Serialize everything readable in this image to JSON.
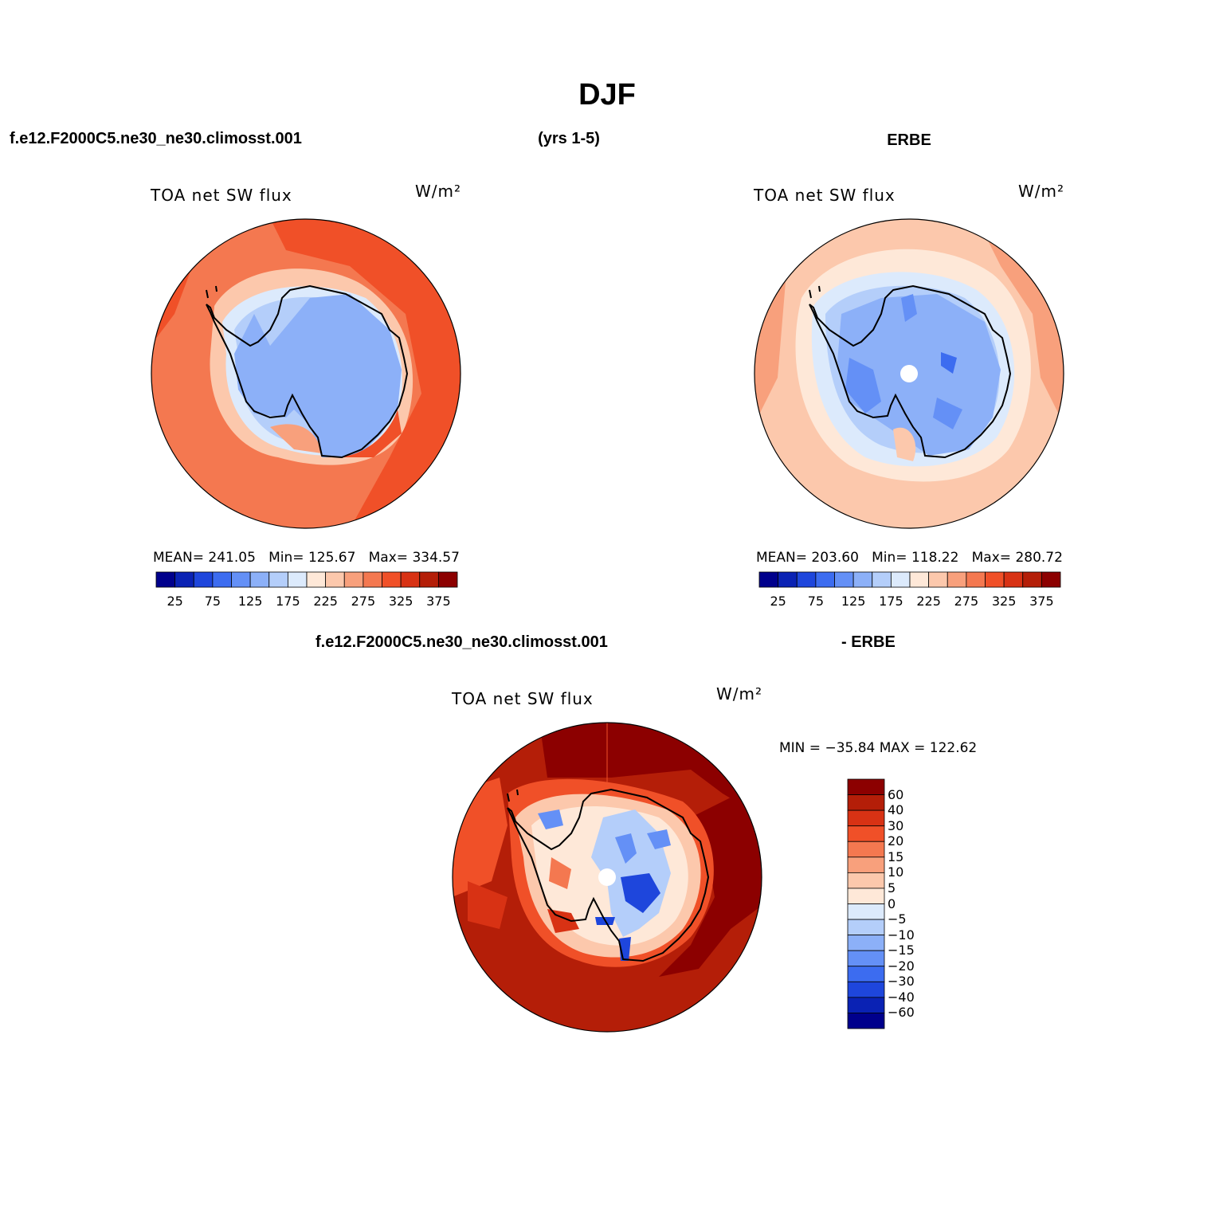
{
  "title": "DJF",
  "header": {
    "case": "f.e12.F2000C5.ne30_ne30.climosst.001",
    "years": "(yrs 1-5)",
    "obs": "ERBE"
  },
  "diff_header": {
    "case": "f.e12.F2000C5.ne30_ne30.climosst.001",
    "obs": "- ERBE"
  },
  "colors": {
    "abs_scale": [
      "#00008c",
      "#0a22b4",
      "#1e46dc",
      "#3c6cf0",
      "#6490f6",
      "#8cb0f8",
      "#b4cefa",
      "#dceafc",
      "#fee8d8",
      "#fcc8ac",
      "#f8a07c",
      "#f47850",
      "#f05028",
      "#d83214",
      "#b41e08",
      "#8c0000"
    ],
    "diff_scale": [
      "#8c0000",
      "#b41e08",
      "#d83214",
      "#f05028",
      "#f47850",
      "#f8a07c",
      "#fcc8ac",
      "#fee8d8",
      "#dceafc",
      "#b4cefa",
      "#8cb0f8",
      "#6490f6",
      "#3c6cf0",
      "#1e46dc",
      "#0a22b4",
      "#00008c"
    ]
  },
  "panels": {
    "model": {
      "name": "TOA net SW flux",
      "units": "W/m²",
      "stats": {
        "mean_label": "MEAN=",
        "mean": "241.05",
        "min_label": "Min=",
        "min": "125.67",
        "max_label": "Max=",
        "max": "334.57"
      },
      "colorbar_ticks": [
        "25",
        "75",
        "125",
        "175",
        "225",
        "275",
        "325",
        "375"
      ]
    },
    "obs": {
      "name": "TOA net SW flux",
      "units": "W/m²",
      "stats": {
        "mean_label": "MEAN=",
        "mean": "203.60",
        "min_label": "Min=",
        "min": "118.22",
        "max_label": "Max=",
        "max": "280.72"
      },
      "colorbar_ticks": [
        "25",
        "75",
        "125",
        "175",
        "225",
        "275",
        "325",
        "375"
      ]
    },
    "diff": {
      "name": "TOA net SW flux",
      "units": "W/m²",
      "minmax": "MIN = −35.84  MAX = 122.62",
      "colorbar_ticks": [
        "60",
        "40",
        "30",
        "20",
        "15",
        "10",
        "5",
        "0",
        "−5",
        "−10",
        "−15",
        "−20",
        "−30",
        "−40",
        "−60"
      ]
    }
  }
}
